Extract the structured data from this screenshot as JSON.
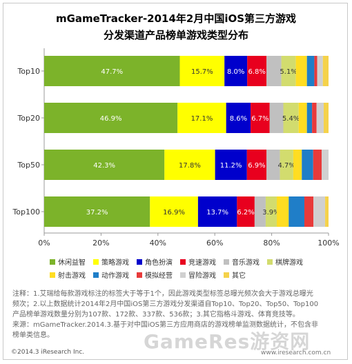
{
  "title_line1": "mGameTracker-2014年2月中国iOS第三方游戏",
  "title_line2": "分发渠道产品榜单游戏类型分布",
  "chart_data": {
    "type": "bar",
    "orientation": "horizontal",
    "stacked": true,
    "categories": [
      "Top10",
      "Top20",
      "Top50",
      "Top100"
    ],
    "xlim": [
      0,
      100
    ],
    "xticks": [
      "0%",
      "20%",
      "40%",
      "60%",
      "80%",
      "100%"
    ],
    "grid": false,
    "legend_position": "bottom",
    "series": [
      {
        "name": "休闲益智",
        "color": "#7cb32a",
        "label_color": "#ffffff",
        "values": [
          47.7,
          46.9,
          42.3,
          37.2
        ],
        "labels": [
          "47.7%",
          "46.9%",
          "42.3%",
          "37.2%"
        ]
      },
      {
        "name": "策略游戏",
        "color": "#ffff00",
        "label_color": "#333333",
        "values": [
          15.7,
          17.1,
          17.8,
          16.9
        ],
        "labels": [
          "15.7%",
          "17.1%",
          "17.8%",
          "16.9%"
        ]
      },
      {
        "name": "角色扮演",
        "color": "#0000cc",
        "label_color": "#ffffff",
        "values": [
          8.0,
          8.6,
          11.2,
          13.7
        ],
        "labels": [
          "8.0%",
          "8.6%",
          "11.2%",
          "13.7%"
        ]
      },
      {
        "name": "竞速游戏",
        "color": "#e8001e",
        "label_color": "#ffffff",
        "values": [
          6.8,
          6.7,
          6.9,
          6.2
        ],
        "labels": [
          "6.8%",
          "6.7%",
          "6.9%",
          "6.2%"
        ]
      },
      {
        "name": "音乐游戏",
        "color": "#c0c0c0",
        "label_color": "#333333",
        "values": [
          5.2,
          4.8,
          4.7,
          3.9
        ],
        "labels": [
          "",
          "",
          "",
          ""
        ]
      },
      {
        "name": "棋牌游戏",
        "color": "#d2dc6e",
        "label_color": "#333333",
        "values": [
          5.1,
          5.4,
          4.7,
          3.9
        ],
        "labels": [
          "5.1%",
          "5.4%",
          "4.7%",
          "3.9%"
        ]
      },
      {
        "name": "射击游戏",
        "color": "#ffdd22",
        "label_color": "#333333",
        "values": [
          3.9,
          2.9,
          3.0,
          4.2
        ],
        "labels": [
          "",
          "",
          "",
          ""
        ]
      },
      {
        "name": "动作游戏",
        "color": "#1f7ec8",
        "label_color": "#ffffff",
        "values": [
          2.6,
          1.8,
          4.0,
          5.5
        ],
        "labels": [
          "",
          "",
          "",
          ""
        ]
      },
      {
        "name": "模拟经营",
        "color": "#e83a3a",
        "label_color": "#ffffff",
        "values": [
          1.0,
          1.6,
          3.0,
          3.2
        ],
        "labels": [
          "",
          "",
          "",
          ""
        ]
      },
      {
        "name": "冒险游戏",
        "color": "#d0d0d0",
        "label_color": "#333333",
        "values": [
          2.0,
          2.5,
          3.3,
          4.1
        ],
        "labels": [
          "",
          "",
          "",
          ""
        ]
      },
      {
        "name": "其它",
        "color": "#f5d24a",
        "label_color": "#333333",
        "values": [
          2.0,
          2.0,
          1.7,
          2.6
        ],
        "labels": [
          "",
          "",
          "",
          ""
        ]
      }
    ]
  },
  "notes": {
    "line1": "注释：1.艾瑞给每款游戏标注的标签大于等于1个，因此游戏类型标签总曝光频次会大于游戏总曝光",
    "line2": "频次；2.以上数据统计2014年2月中国iOS第三方游戏分发渠道自Top10、Top20、Top50、Top100",
    "line3": "产品榜单游戏数量分别为107款、172款、337款、536款；3.其它指格斗游戏、体育竞技等。",
    "line4": "来源：mGameTracker.2014.3.基于对中国iOS第三方应用商店的游戏榜单监测数据统计，不包含非",
    "line5": "榜单类信息。"
  },
  "copyright": "©2014.3 iResearch Inc.",
  "watermark": "GameRes游资网",
  "website": "www.iresearch.com.cn"
}
